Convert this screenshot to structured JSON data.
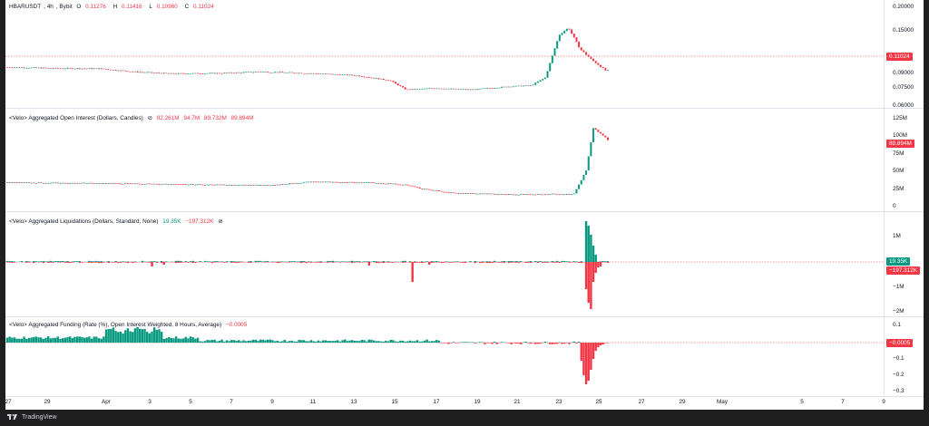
{
  "price": {
    "symbol": "HBARUSDT",
    "timeframe": "4h",
    "exchange": "Bybit",
    "ohlc": [
      {
        "label": "O",
        "value": "0.11276"
      },
      {
        "label": "H",
        "value": "0.11416"
      },
      {
        "label": "L",
        "value": "0.10960"
      },
      {
        "label": "C",
        "value": "0.11024"
      }
    ],
    "axis_ticks": [
      "0.20000",
      "0.15000",
      "0.09000",
      "0.07500",
      "0.06000"
    ],
    "last_price_badge": "0.11024"
  },
  "open_interest": {
    "title": "<Velo> Aggregated Open Interest (Dollars, Candles)",
    "values": [
      "92.261M",
      "94.7M",
      "89.732M",
      "89.894M"
    ],
    "axis_ticks": [
      "125M",
      "100M",
      "75M",
      "50M",
      "25M",
      "0"
    ],
    "last_badge": "89.894M"
  },
  "liquidations": {
    "title": "<Velo> Aggregated Liquidations (Dollars, Standard, None)",
    "long_value": "19.35K",
    "short_value": "−197.312K",
    "axis_ticks": [
      "1M",
      "−1M",
      "−2M"
    ],
    "badge_green": "19.35K",
    "badge_red": "−197.312K"
  },
  "funding": {
    "title": "<Velo> Aggregated Funding (Rate (%), Open Interest Weighted, 8 Hours, Average)",
    "value": "−0.0005",
    "axis_ticks": [
      "0.1",
      "−0.1",
      "−0.2",
      "−0.3"
    ],
    "last_badge": "−0.0005"
  },
  "time_axis": [
    "27",
    "29",
    "Apr",
    "3",
    "5",
    "7",
    "9",
    "11",
    "13",
    "15",
    "17",
    "19",
    "21",
    "23",
    "25",
    "27",
    "29",
    "May",
    "5",
    "7",
    "9"
  ],
  "footer": {
    "brand": "TradingView"
  },
  "colors": {
    "up": "#089981",
    "down": "#f23645",
    "price_line": "#f23645"
  },
  "chart_data": [
    {
      "type": "line",
      "title": "HBARUSDT 4h Bybit",
      "ylabel": "Price",
      "ylim": [
        0.06,
        0.2
      ],
      "x": [
        "Mar 27",
        "Mar 29",
        "Apr 1",
        "Apr 3",
        "Apr 5",
        "Apr 7",
        "Apr 9",
        "Apr 11",
        "Apr 13",
        "Apr 15",
        "Apr 17",
        "Apr 19",
        "Apr 21",
        "Apr 23",
        "Apr 24",
        "Apr 25"
      ],
      "series": [
        {
          "values": [
            0.114,
            0.112,
            0.113,
            0.107,
            0.105,
            0.104,
            0.106,
            0.103,
            0.095,
            0.082,
            0.084,
            0.082,
            0.083,
            0.088,
            0.17,
            0.11
          ]
        }
      ]
    },
    {
      "type": "line",
      "title": "<Velo> Aggregated Open Interest (Dollars, Candles)",
      "ylim": [
        0,
        125000000
      ],
      "x": [
        "Mar 27",
        "Mar 29",
        "Apr 1",
        "Apr 3",
        "Apr 5",
        "Apr 7",
        "Apr 9",
        "Apr 11",
        "Apr 13",
        "Apr 15",
        "Apr 17",
        "Apr 19",
        "Apr 21",
        "Apr 23",
        "Apr 24",
        "Apr 25"
      ],
      "series": [
        {
          "values": [
            33000000,
            32000000,
            31000000,
            30000000,
            30000000,
            29000000,
            34000000,
            32000000,
            24000000,
            18000000,
            16000000,
            16000000,
            17000000,
            17000000,
            110000000,
            89894000
          ]
        }
      ]
    }
  ]
}
